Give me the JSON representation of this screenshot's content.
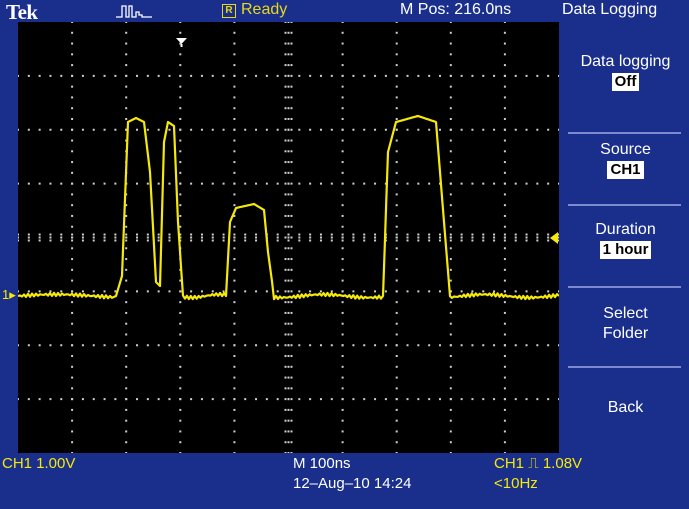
{
  "header": {
    "brand": "Tek",
    "status_badge": "R",
    "status": "Ready",
    "m_pos": "M Pos: 216.0ns",
    "menu_title": "Data Logging"
  },
  "sidebar": {
    "data_logging": {
      "label": "Data logging",
      "value": "Off"
    },
    "source": {
      "label": "Source",
      "value": "CH1"
    },
    "duration": {
      "label": "Duration",
      "value": "1 hour"
    },
    "select_folder": {
      "line1": "Select",
      "line2": "Folder"
    },
    "back": {
      "label": "Back"
    }
  },
  "footer": {
    "ch1_scale": "CH1  1.00V",
    "timebase": "M 100ns",
    "datetime": "12–Aug–10 14:24",
    "trigger": "CH1 ⎍ 1.08V",
    "freq": "<10Hz"
  },
  "markers": {
    "ch1": "1"
  },
  "colors": {
    "background": "#1a2f8c",
    "trace": "#f5e90b",
    "grid": "#ffffff"
  }
}
